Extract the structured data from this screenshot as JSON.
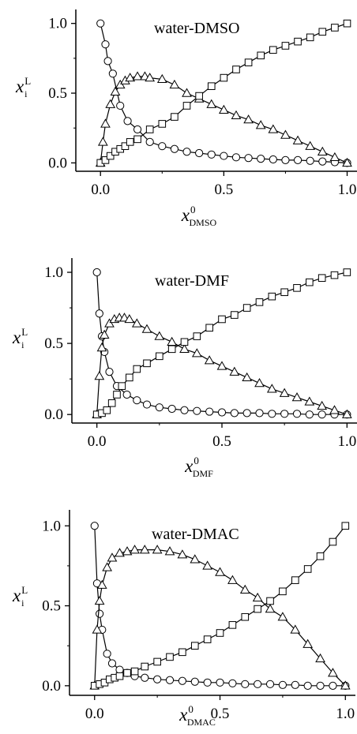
{
  "chart_data": [
    {
      "type": "line",
      "title": "water-DMSO",
      "ylabel": {
        "var": "x",
        "sup": "L",
        "sub": "i"
      },
      "xlabel": {
        "var": "x",
        "sup": "0",
        "sub": "DMSO"
      },
      "xlim": [
        -0.1,
        1.04
      ],
      "ylim": [
        -0.06,
        1.1
      ],
      "xticks": [
        "0.0",
        "0.5",
        "1.0"
      ],
      "yticks": [
        "0.0",
        "0.5",
        "1.0"
      ],
      "grid": false,
      "series": [
        {
          "marker": "circle",
          "x": [
            0.0,
            0.02,
            0.03,
            0.05,
            0.08,
            0.11,
            0.15,
            0.2,
            0.25,
            0.3,
            0.35,
            0.4,
            0.45,
            0.5,
            0.55,
            0.6,
            0.65,
            0.7,
            0.75,
            0.8,
            0.85,
            0.9,
            0.95,
            1.0
          ],
          "y": [
            1.0,
            0.85,
            0.73,
            0.64,
            0.41,
            0.3,
            0.24,
            0.15,
            0.12,
            0.1,
            0.08,
            0.07,
            0.06,
            0.05,
            0.04,
            0.035,
            0.03,
            0.025,
            0.02,
            0.02,
            0.015,
            0.01,
            0.005,
            0.0
          ]
        },
        {
          "marker": "triangle",
          "x": [
            0.0,
            0.01,
            0.02,
            0.04,
            0.06,
            0.08,
            0.1,
            0.12,
            0.15,
            0.18,
            0.2,
            0.25,
            0.3,
            0.35,
            0.4,
            0.45,
            0.5,
            0.55,
            0.6,
            0.65,
            0.7,
            0.75,
            0.8,
            0.85,
            0.9,
            0.95,
            1.0
          ],
          "y": [
            0.0,
            0.15,
            0.28,
            0.42,
            0.51,
            0.56,
            0.59,
            0.61,
            0.62,
            0.62,
            0.61,
            0.6,
            0.56,
            0.5,
            0.46,
            0.42,
            0.38,
            0.34,
            0.31,
            0.27,
            0.24,
            0.2,
            0.16,
            0.12,
            0.08,
            0.04,
            0.0
          ]
        },
        {
          "marker": "square",
          "x": [
            0.0,
            0.02,
            0.04,
            0.06,
            0.08,
            0.1,
            0.12,
            0.15,
            0.2,
            0.25,
            0.3,
            0.35,
            0.4,
            0.45,
            0.5,
            0.55,
            0.6,
            0.65,
            0.7,
            0.75,
            0.8,
            0.85,
            0.9,
            0.95,
            1.0
          ],
          "y": [
            0.0,
            0.02,
            0.05,
            0.08,
            0.1,
            0.12,
            0.15,
            0.17,
            0.24,
            0.28,
            0.33,
            0.41,
            0.48,
            0.55,
            0.61,
            0.67,
            0.72,
            0.77,
            0.81,
            0.84,
            0.87,
            0.9,
            0.94,
            0.97,
            1.0
          ]
        }
      ]
    },
    {
      "type": "line",
      "title": "water-DMF",
      "ylabel": {
        "var": "x",
        "sup": "L",
        "sub": "i"
      },
      "xlabel": {
        "var": "x",
        "sup": "0",
        "sub": "DMF"
      },
      "xlim": [
        -0.1,
        1.04
      ],
      "ylim": [
        -0.06,
        1.1
      ],
      "xticks": [
        "0.0",
        "0.5",
        "1.0"
      ],
      "yticks": [
        "0.0",
        "0.5",
        "1.0"
      ],
      "grid": false,
      "series": [
        {
          "marker": "circle",
          "x": [
            0.0,
            0.01,
            0.02,
            0.03,
            0.05,
            0.08,
            0.12,
            0.16,
            0.2,
            0.25,
            0.3,
            0.35,
            0.4,
            0.45,
            0.5,
            0.55,
            0.6,
            0.65,
            0.7,
            0.75,
            0.8,
            0.85,
            0.9,
            0.95,
            1.0
          ],
          "y": [
            1.0,
            0.71,
            0.55,
            0.44,
            0.3,
            0.2,
            0.14,
            0.1,
            0.07,
            0.05,
            0.04,
            0.03,
            0.025,
            0.02,
            0.015,
            0.01,
            0.01,
            0.01,
            0.005,
            0.005,
            0.005,
            0.0,
            0.0,
            0.0,
            0.0
          ]
        },
        {
          "marker": "triangle",
          "x": [
            0.0,
            0.01,
            0.02,
            0.03,
            0.05,
            0.07,
            0.09,
            0.11,
            0.13,
            0.16,
            0.2,
            0.25,
            0.3,
            0.35,
            0.4,
            0.45,
            0.5,
            0.55,
            0.6,
            0.65,
            0.7,
            0.75,
            0.8,
            0.85,
            0.9,
            0.95,
            1.0
          ],
          "y": [
            0.0,
            0.27,
            0.47,
            0.56,
            0.64,
            0.67,
            0.68,
            0.68,
            0.67,
            0.64,
            0.6,
            0.55,
            0.51,
            0.46,
            0.43,
            0.38,
            0.34,
            0.3,
            0.26,
            0.22,
            0.18,
            0.15,
            0.12,
            0.09,
            0.06,
            0.03,
            0.0
          ]
        },
        {
          "marker": "square",
          "x": [
            0.0,
            0.02,
            0.04,
            0.06,
            0.08,
            0.1,
            0.13,
            0.16,
            0.2,
            0.25,
            0.3,
            0.35,
            0.4,
            0.45,
            0.5,
            0.55,
            0.6,
            0.65,
            0.7,
            0.75,
            0.8,
            0.85,
            0.9,
            0.95,
            1.0
          ],
          "y": [
            0.0,
            0.01,
            0.03,
            0.08,
            0.14,
            0.2,
            0.26,
            0.32,
            0.36,
            0.41,
            0.46,
            0.51,
            0.55,
            0.61,
            0.67,
            0.7,
            0.75,
            0.79,
            0.83,
            0.86,
            0.89,
            0.93,
            0.96,
            0.98,
            1.0
          ]
        }
      ]
    },
    {
      "type": "line",
      "title": "water-DMAC",
      "ylabel": {
        "var": "x",
        "sup": "L",
        "sub": "i"
      },
      "xlabel": {
        "var": "x",
        "sup": "0",
        "sub": "DMAC"
      },
      "xlim": [
        -0.1,
        1.04
      ],
      "ylim": [
        -0.06,
        1.1
      ],
      "xticks": [
        "0.0",
        "0.5",
        "1.0"
      ],
      "yticks": [
        "0.0",
        "0.5",
        "1.0"
      ],
      "grid": false,
      "series": [
        {
          "marker": "circle",
          "x": [
            0.0,
            0.01,
            0.02,
            0.03,
            0.05,
            0.07,
            0.1,
            0.13,
            0.16,
            0.2,
            0.25,
            0.3,
            0.35,
            0.4,
            0.45,
            0.5,
            0.55,
            0.6,
            0.65,
            0.7,
            0.75,
            0.8,
            0.85,
            0.9,
            0.95,
            1.0
          ],
          "y": [
            1.0,
            0.64,
            0.45,
            0.35,
            0.2,
            0.14,
            0.1,
            0.08,
            0.06,
            0.05,
            0.04,
            0.035,
            0.03,
            0.025,
            0.02,
            0.02,
            0.015,
            0.01,
            0.01,
            0.01,
            0.005,
            0.005,
            0.0,
            0.0,
            0.0,
            0.0
          ]
        },
        {
          "marker": "triangle",
          "x": [
            0.0,
            0.01,
            0.02,
            0.03,
            0.05,
            0.07,
            0.1,
            0.13,
            0.16,
            0.2,
            0.25,
            0.3,
            0.35,
            0.4,
            0.45,
            0.5,
            0.55,
            0.6,
            0.65,
            0.7,
            0.75,
            0.8,
            0.85,
            0.9,
            0.95,
            1.0
          ],
          "y": [
            0.0,
            0.35,
            0.53,
            0.63,
            0.74,
            0.8,
            0.83,
            0.84,
            0.85,
            0.85,
            0.85,
            0.84,
            0.82,
            0.79,
            0.75,
            0.71,
            0.66,
            0.6,
            0.55,
            0.48,
            0.43,
            0.35,
            0.26,
            0.17,
            0.08,
            0.0
          ]
        },
        {
          "marker": "square",
          "x": [
            0.0,
            0.02,
            0.04,
            0.06,
            0.08,
            0.1,
            0.13,
            0.16,
            0.2,
            0.25,
            0.3,
            0.35,
            0.4,
            0.45,
            0.5,
            0.55,
            0.6,
            0.65,
            0.7,
            0.75,
            0.8,
            0.85,
            0.9,
            0.95,
            1.0
          ],
          "y": [
            0.0,
            0.01,
            0.02,
            0.04,
            0.05,
            0.06,
            0.08,
            0.09,
            0.12,
            0.15,
            0.18,
            0.21,
            0.25,
            0.29,
            0.33,
            0.38,
            0.43,
            0.48,
            0.53,
            0.59,
            0.66,
            0.73,
            0.81,
            0.9,
            1.0
          ]
        }
      ]
    }
  ]
}
